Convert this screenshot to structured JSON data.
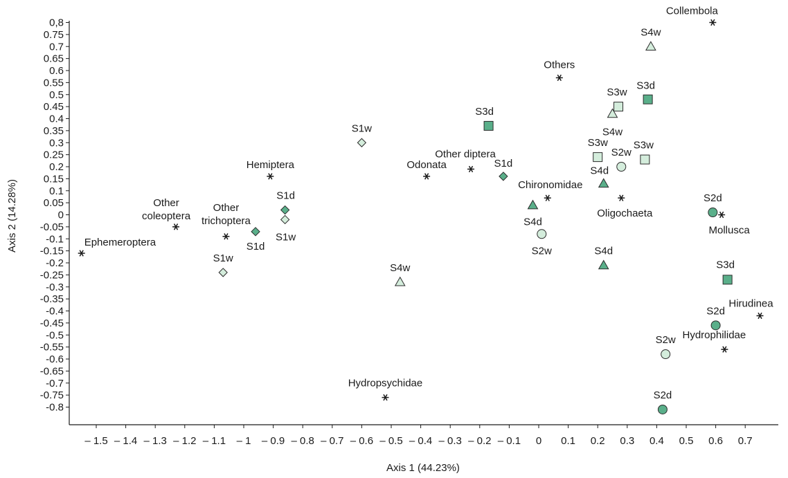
{
  "chart_data": {
    "type": "scatter",
    "xlabel": "Axis 1 (44.23%)",
    "ylabel": "Axis 2 (14.28%)",
    "xlim": [
      -1.55,
      0.76
    ],
    "ylim": [
      -0.85,
      0.83
    ],
    "grid": false,
    "x_ticks": [
      "– 1.5",
      "– 1.4",
      "– 1.3",
      "– 1.2",
      "– 1.1",
      "– 1",
      "– 0.9",
      "– 0.8",
      "– 0.7",
      "– 0.6",
      "– 0.5",
      "– 0.4",
      "– 0.3",
      "– 0.2",
      "– 0.1",
      "0",
      "0.1",
      "0.2",
      "0.3",
      "0.4",
      "0.5",
      "0.6",
      "0.7"
    ],
    "y_ticks": [
      "0,8",
      "0.75",
      "0.7",
      "0.65",
      "0.6",
      "0.55",
      "0.5",
      "0.45",
      "0.4",
      "0.35",
      "0.3",
      "0.25",
      "0.2",
      "0.15",
      "0.1",
      "0.05",
      "0",
      "-0.05",
      "-0.1",
      "-0.15",
      "-0.2",
      "-0.25",
      "-0.3",
      "-0.35",
      "-0.4",
      "-0.45",
      "-0.5",
      "-0.55",
      "-0.6",
      "-0.65",
      "-0.7",
      "-0.75",
      "-0.8"
    ],
    "series": [
      {
        "marker": "asterisk",
        "color": "#1a1a1a",
        "points": [
          {
            "label": "Ephemeroptera",
            "x": -1.55,
            "y": -0.16
          },
          {
            "label": "Other coleoptera",
            "x": -1.23,
            "y": -0.05
          },
          {
            "label": "Other trichoptera",
            "x": -1.06,
            "y": -0.09
          },
          {
            "label": "Hemiptera",
            "x": -0.91,
            "y": 0.16
          },
          {
            "label": "Odonata",
            "x": -0.38,
            "y": 0.16
          },
          {
            "label": "Other diptera",
            "x": -0.23,
            "y": 0.19
          },
          {
            "label": "Chironomidae",
            "x": 0.03,
            "y": 0.07
          },
          {
            "label": "Others",
            "x": 0.07,
            "y": 0.57
          },
          {
            "label": "Oligochaeta",
            "x": 0.28,
            "y": 0.07
          },
          {
            "label": "Collembola",
            "x": 0.59,
            "y": 0.8
          },
          {
            "label": "Mollusca",
            "x": 0.62,
            "y": 0.0
          },
          {
            "label": "Hirudinea",
            "x": 0.75,
            "y": -0.42
          },
          {
            "label": "Hydrophilidae",
            "x": 0.63,
            "y": -0.56
          },
          {
            "label": "Hydropsychidae",
            "x": -0.52,
            "y": -0.76
          }
        ]
      },
      {
        "marker": "diamond",
        "color": "#5aaf8a",
        "points": [
          {
            "label": "S1d",
            "x": -0.86,
            "y": 0.02
          },
          {
            "label": "S1d",
            "x": -0.96,
            "y": -0.07
          },
          {
            "label": "S1d",
            "x": -0.12,
            "y": 0.16
          }
        ]
      },
      {
        "marker": "diamond",
        "color": "#d4eddc",
        "points": [
          {
            "label": "S1w",
            "x": -0.86,
            "y": -0.02
          },
          {
            "label": "S1w",
            "x": -1.07,
            "y": -0.24
          },
          {
            "label": "S1w",
            "x": -0.6,
            "y": 0.3
          }
        ]
      },
      {
        "marker": "circle",
        "color": "#5aaf8a",
        "points": [
          {
            "label": "S2d",
            "x": 0.59,
            "y": 0.01
          },
          {
            "label": "S2d",
            "x": 0.6,
            "y": -0.46
          },
          {
            "label": "S2d",
            "x": 0.42,
            "y": -0.81
          }
        ]
      },
      {
        "marker": "circle",
        "color": "#d4eddc",
        "points": [
          {
            "label": "S2w",
            "x": 0.28,
            "y": 0.2
          },
          {
            "label": "S2w",
            "x": 0.01,
            "y": -0.08
          },
          {
            "label": "S2w",
            "x": 0.43,
            "y": -0.58
          }
        ]
      },
      {
        "marker": "square",
        "color": "#5aaf8a",
        "points": [
          {
            "label": "S3d",
            "x": -0.17,
            "y": 0.37
          },
          {
            "label": "S3d",
            "x": 0.37,
            "y": 0.48
          },
          {
            "label": "S3d",
            "x": 0.64,
            "y": -0.27
          }
        ]
      },
      {
        "marker": "square",
        "color": "#d4eddc",
        "points": [
          {
            "label": "S3w",
            "x": 0.27,
            "y": 0.45
          },
          {
            "label": "S3w",
            "x": 0.2,
            "y": 0.24
          },
          {
            "label": "S3w",
            "x": 0.36,
            "y": 0.23
          }
        ]
      },
      {
        "marker": "triangle",
        "color": "#5aaf8a",
        "points": [
          {
            "label": "S4d",
            "x": 0.22,
            "y": 0.13
          },
          {
            "label": "S4d",
            "x": -0.02,
            "y": 0.04
          },
          {
            "label": "S4d",
            "x": 0.22,
            "y": -0.21
          }
        ]
      },
      {
        "marker": "triangle",
        "color": "#d4eddc",
        "points": [
          {
            "label": "S4w",
            "x": 0.38,
            "y": 0.7
          },
          {
            "label": "S4w",
            "x": 0.25,
            "y": 0.42
          },
          {
            "label": "S4w",
            "x": -0.47,
            "y": -0.28
          }
        ]
      }
    ]
  }
}
